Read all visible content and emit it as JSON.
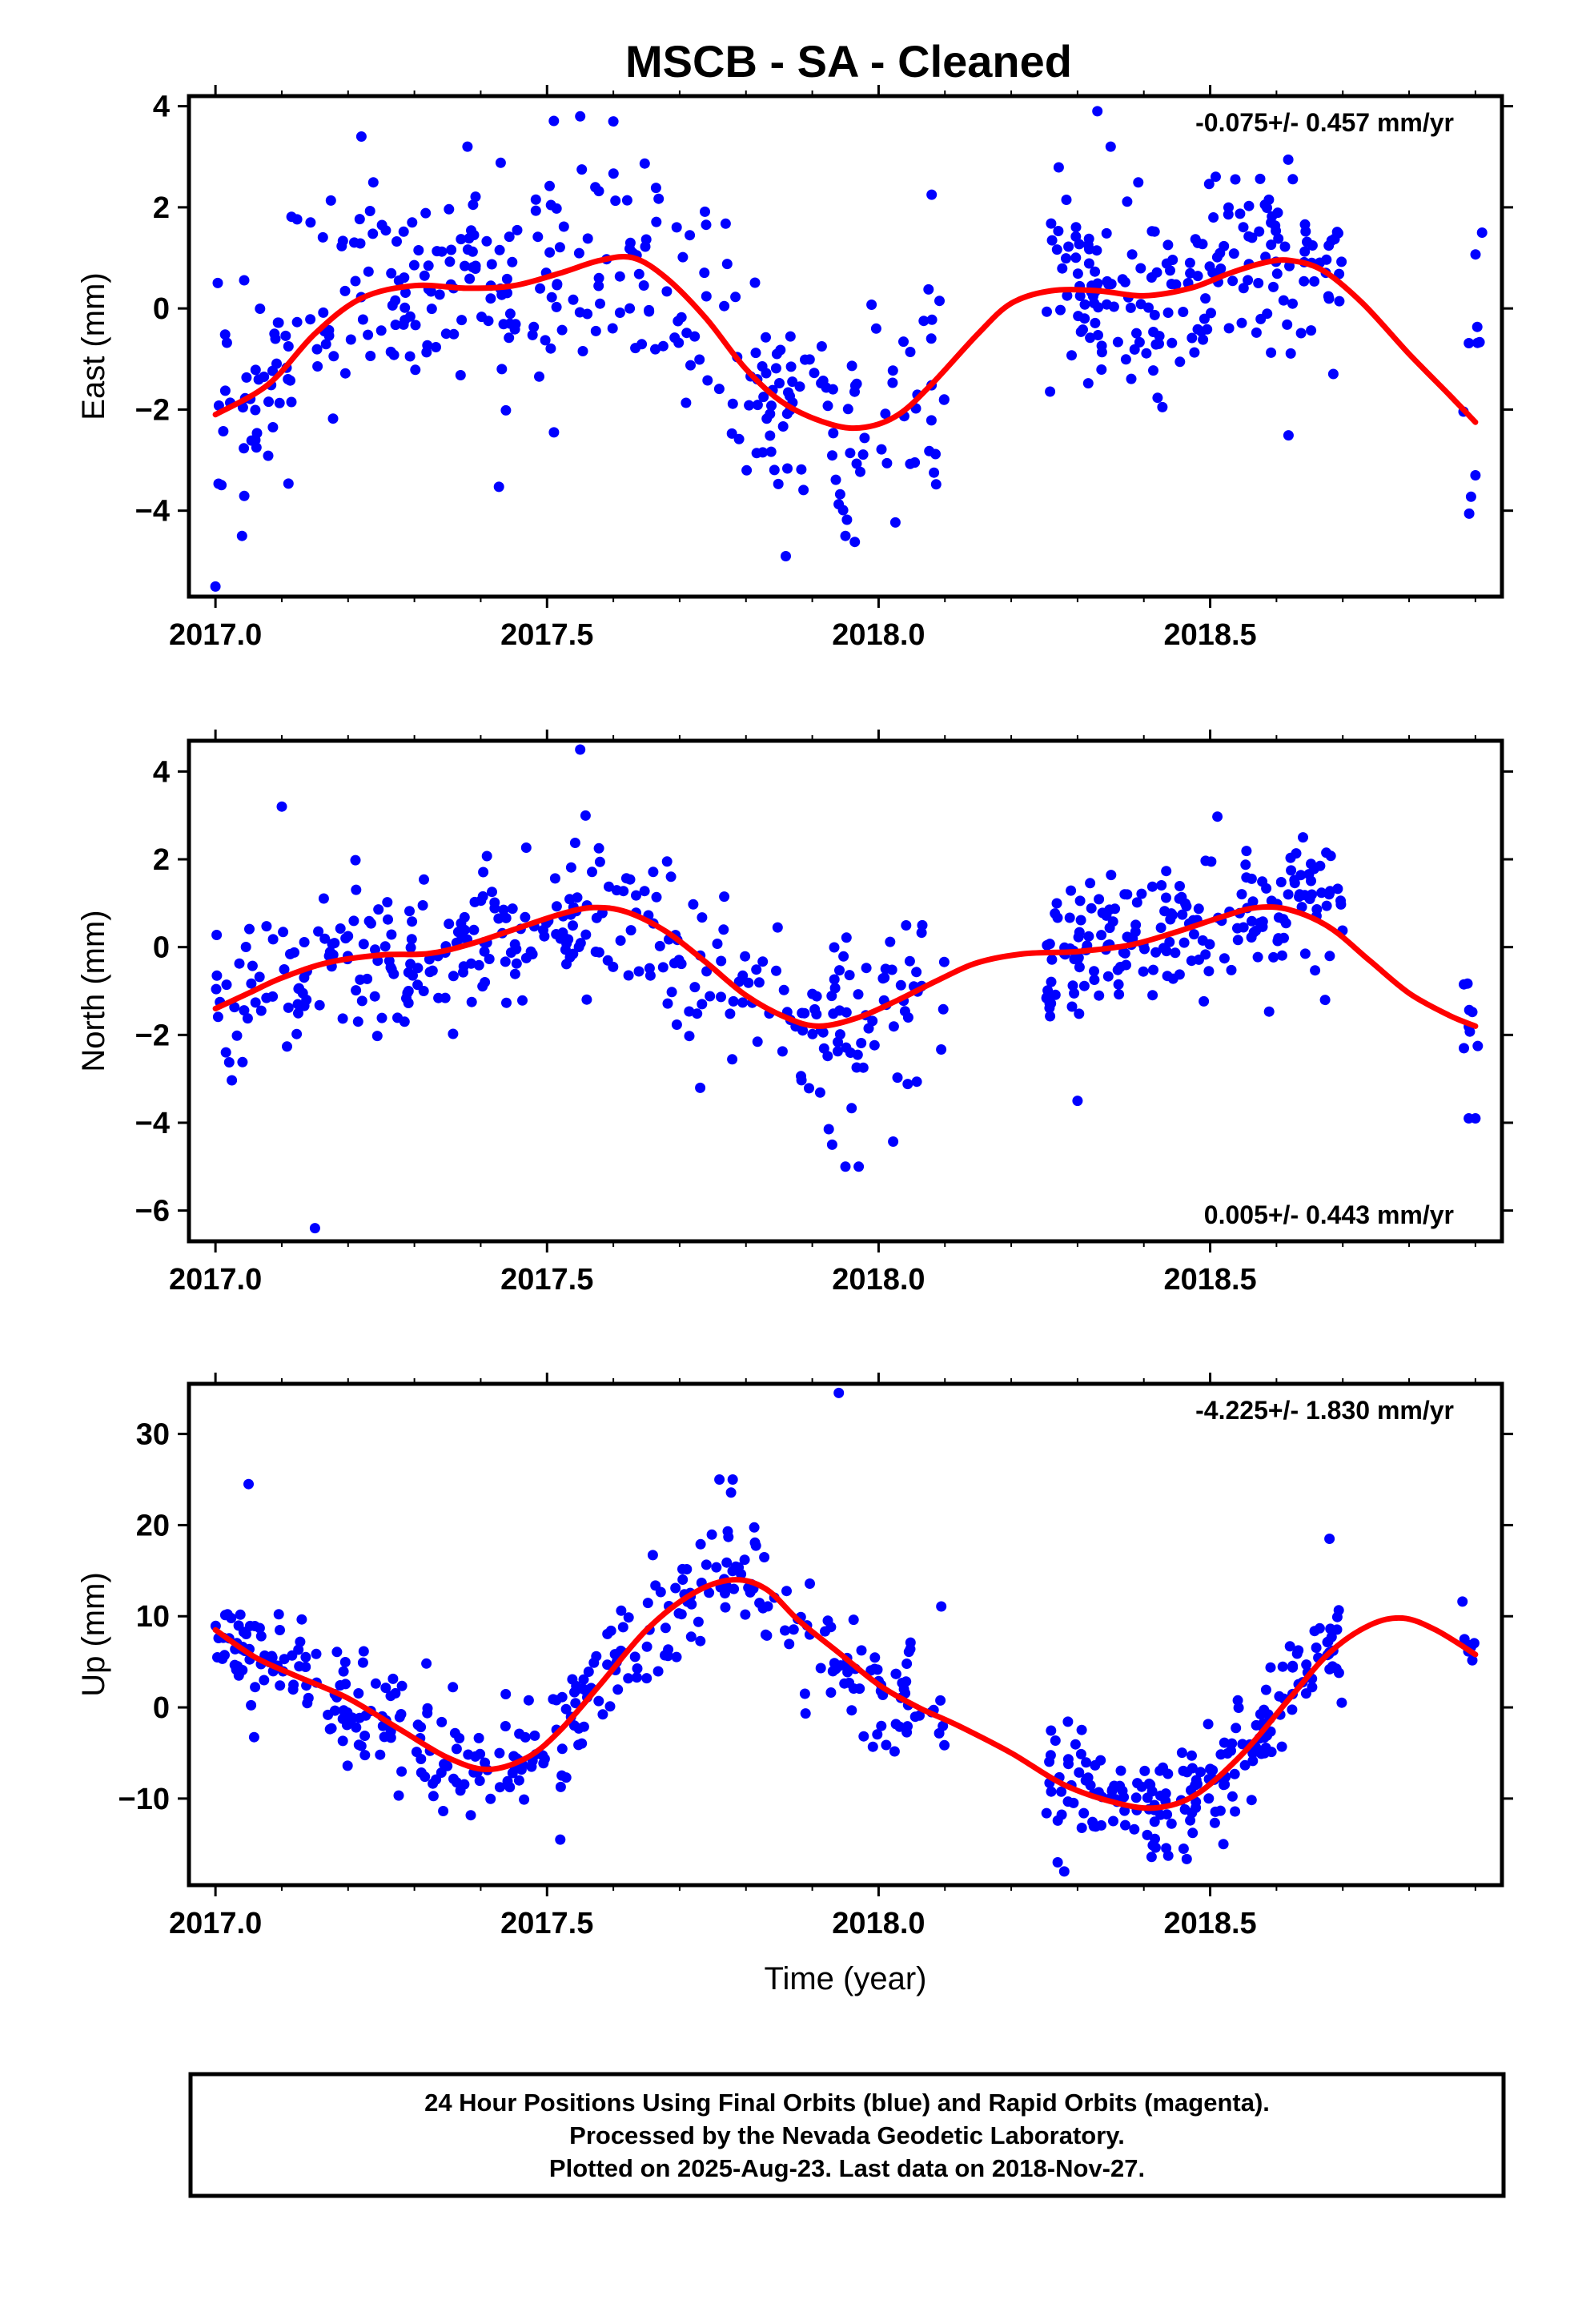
{
  "title": "MSCB  - SA - Cleaned",
  "footer": {
    "lines": [
      "24 Hour Positions Using Final Orbits (blue) and Rapid Orbits (magenta).",
      "Processed by the Nevada Geodetic Laboratory.",
      "Plotted on 2025-Aug-23. Last data on 2018-Nov-27."
    ]
  },
  "colors": {
    "points": "#0000ff",
    "fit": "#ff0000",
    "frame": "#000000"
  },
  "chart_data": [
    {
      "type": "scatter",
      "ylabel": "East (mm)",
      "xlabel": "",
      "rate_label": "-0.075+/- 0.457 mm/yr",
      "rate_position": "top-right",
      "xlim": [
        2016.96,
        2018.94
      ],
      "ylim": [
        -5.7,
        4.2
      ],
      "xticks": [
        2017.0,
        2017.5,
        2018.0,
        2018.5
      ],
      "xtick_labels": [
        "2017.0",
        "2017.5",
        "2018.0",
        "2018.5"
      ],
      "yticks": [
        -4,
        -2,
        0,
        2,
        4
      ],
      "ytick_labels": [
        "−4",
        "−2",
        "0",
        "2",
        "4"
      ],
      "trend_points": [
        [
          2017.0,
          -2.1
        ],
        [
          2017.08,
          -1.5
        ],
        [
          2017.15,
          -0.5
        ],
        [
          2017.22,
          0.2
        ],
        [
          2017.3,
          0.45
        ],
        [
          2017.38,
          0.4
        ],
        [
          2017.45,
          0.45
        ],
        [
          2017.52,
          0.7
        ],
        [
          2017.58,
          0.95
        ],
        [
          2017.63,
          1.0
        ],
        [
          2017.68,
          0.6
        ],
        [
          2017.74,
          -0.2
        ],
        [
          2017.8,
          -1.2
        ],
        [
          2017.86,
          -1.9
        ],
        [
          2017.93,
          -2.3
        ],
        [
          2017.98,
          -2.35
        ],
        [
          2018.03,
          -2.1
        ],
        [
          2018.08,
          -1.5
        ],
        [
          2018.15,
          -0.5
        ],
        [
          2018.2,
          0.1
        ],
        [
          2018.26,
          0.35
        ],
        [
          2018.33,
          0.35
        ],
        [
          2018.4,
          0.25
        ],
        [
          2018.47,
          0.4
        ],
        [
          2018.53,
          0.7
        ],
        [
          2018.58,
          0.9
        ],
        [
          2018.62,
          0.95
        ],
        [
          2018.67,
          0.75
        ],
        [
          2018.73,
          0.1
        ],
        [
          2018.8,
          -0.9
        ],
        [
          2018.86,
          -1.7
        ],
        [
          2018.9,
          -2.25
        ]
      ],
      "clusters": [
        {
          "x0": 2017.0,
          "x1": 2017.68,
          "n": 220,
          "sd": 1.05,
          "seed": 11
        },
        {
          "x0": 2017.68,
          "x1": 2018.1,
          "n": 120,
          "sd": 1.0,
          "seed": 12
        },
        {
          "x0": 2018.25,
          "x1": 2018.7,
          "n": 190,
          "sd": 0.95,
          "seed": 13
        },
        {
          "x0": 2018.88,
          "x1": 2018.91,
          "n": 8,
          "sd": 1.2,
          "seed": 14
        }
      ],
      "outliers": [
        [
          2017.0,
          -5.5
        ],
        [
          2017.04,
          -4.5
        ],
        [
          2017.22,
          3.4
        ],
        [
          2017.38,
          3.2
        ],
        [
          2017.55,
          3.8
        ],
        [
          2017.6,
          3.7
        ],
        [
          2017.86,
          -4.9
        ],
        [
          2017.95,
          -4.5
        ],
        [
          2018.08,
          2.25
        ],
        [
          2018.33,
          3.9
        ],
        [
          2018.35,
          3.2
        ],
        [
          2018.91,
          1.5
        ],
        [
          2018.9,
          -3.3
        ]
      ]
    },
    {
      "type": "scatter",
      "ylabel": "North (mm)",
      "xlabel": "",
      "rate_label": "0.005+/- 0.443 mm/yr",
      "rate_position": "bottom-right",
      "xlim": [
        2016.96,
        2018.94
      ],
      "ylim": [
        -6.7,
        4.7
      ],
      "xticks": [
        2017.0,
        2017.5,
        2018.0,
        2018.5
      ],
      "xtick_labels": [
        "2017.0",
        "2017.5",
        "2018.0",
        "2018.5"
      ],
      "yticks": [
        -6,
        -4,
        -2,
        0,
        2,
        4
      ],
      "ytick_labels": [
        "−6",
        "−4",
        "−2",
        "0",
        "2",
        "4"
      ],
      "trend_points": [
        [
          2017.0,
          -1.4
        ],
        [
          2017.05,
          -1.05
        ],
        [
          2017.1,
          -0.7
        ],
        [
          2017.17,
          -0.35
        ],
        [
          2017.25,
          -0.18
        ],
        [
          2017.32,
          -0.15
        ],
        [
          2017.38,
          0.05
        ],
        [
          2017.45,
          0.4
        ],
        [
          2017.52,
          0.75
        ],
        [
          2017.57,
          0.9
        ],
        [
          2017.62,
          0.8
        ],
        [
          2017.68,
          0.35
        ],
        [
          2017.74,
          -0.35
        ],
        [
          2017.8,
          -1.1
        ],
        [
          2017.86,
          -1.6
        ],
        [
          2017.91,
          -1.8
        ],
        [
          2017.97,
          -1.6
        ],
        [
          2018.03,
          -1.2
        ],
        [
          2018.09,
          -0.75
        ],
        [
          2018.15,
          -0.35
        ],
        [
          2018.22,
          -0.15
        ],
        [
          2018.3,
          -0.1
        ],
        [
          2018.38,
          0.05
        ],
        [
          2018.45,
          0.35
        ],
        [
          2018.52,
          0.7
        ],
        [
          2018.57,
          0.9
        ],
        [
          2018.62,
          0.85
        ],
        [
          2018.68,
          0.45
        ],
        [
          2018.74,
          -0.3
        ],
        [
          2018.8,
          -1.05
        ],
        [
          2018.86,
          -1.55
        ],
        [
          2018.9,
          -1.8
        ]
      ],
      "clusters": [
        {
          "x0": 2017.0,
          "x1": 2017.68,
          "n": 220,
          "sd": 0.85,
          "seed": 21
        },
        {
          "x0": 2017.68,
          "x1": 2018.1,
          "n": 120,
          "sd": 0.95,
          "seed": 22
        },
        {
          "x0": 2018.25,
          "x1": 2018.7,
          "n": 190,
          "sd": 0.8,
          "seed": 23
        },
        {
          "x0": 2018.88,
          "x1": 2018.91,
          "n": 8,
          "sd": 1.0,
          "seed": 24
        }
      ],
      "outliers": [
        [
          2017.15,
          -6.4
        ],
        [
          2017.1,
          3.2
        ],
        [
          2017.55,
          4.5
        ],
        [
          2017.93,
          -4.5
        ],
        [
          2017.95,
          -5.0
        ],
        [
          2017.97,
          -5.0
        ],
        [
          2018.3,
          -3.5
        ],
        [
          2018.9,
          -3.9
        ],
        [
          2018.89,
          -3.9
        ],
        [
          2018.64,
          2.5
        ]
      ]
    },
    {
      "type": "scatter",
      "ylabel": "Up (mm)",
      "xlabel": "Time (year)",
      "rate_label": "-4.225+/- 1.830 mm/yr",
      "rate_position": "top-right",
      "xlim": [
        2016.96,
        2018.94
      ],
      "ylim": [
        -19.5,
        35.5
      ],
      "xticks": [
        2017.0,
        2017.5,
        2018.0,
        2018.5
      ],
      "xtick_labels": [
        "2017.0",
        "2017.5",
        "2018.0",
        "2018.5"
      ],
      "yticks": [
        -10,
        0,
        10,
        20,
        30
      ],
      "ytick_labels": [
        "−10",
        "0",
        "10",
        "20",
        "30"
      ],
      "trend_points": [
        [
          2017.0,
          8.5
        ],
        [
          2017.06,
          5.5
        ],
        [
          2017.12,
          3.5
        ],
        [
          2017.2,
          1.0
        ],
        [
          2017.28,
          -2.5
        ],
        [
          2017.35,
          -5.5
        ],
        [
          2017.41,
          -6.8
        ],
        [
          2017.47,
          -5.5
        ],
        [
          2017.52,
          -2.5
        ],
        [
          2017.58,
          2.5
        ],
        [
          2017.65,
          8.5
        ],
        [
          2017.72,
          12.5
        ],
        [
          2017.78,
          14.0
        ],
        [
          2017.83,
          13.0
        ],
        [
          2017.88,
          9.5
        ],
        [
          2017.94,
          6.0
        ],
        [
          2018.0,
          2.5
        ],
        [
          2018.06,
          0.0
        ],
        [
          2018.12,
          -2.0
        ],
        [
          2018.2,
          -5.0
        ],
        [
          2018.28,
          -8.5
        ],
        [
          2018.36,
          -10.5
        ],
        [
          2018.42,
          -11.0
        ],
        [
          2018.48,
          -9.5
        ],
        [
          2018.55,
          -5.0
        ],
        [
          2018.62,
          1.0
        ],
        [
          2018.68,
          6.0
        ],
        [
          2018.74,
          9.0
        ],
        [
          2018.79,
          9.8
        ],
        [
          2018.84,
          8.5
        ],
        [
          2018.9,
          5.8
        ]
      ],
      "clusters": [
        {
          "x0": 2017.0,
          "x1": 2017.68,
          "n": 230,
          "sd": 3.1,
          "seed": 31
        },
        {
          "x0": 2017.68,
          "x1": 2018.1,
          "n": 125,
          "sd": 3.3,
          "seed": 32
        },
        {
          "x0": 2018.25,
          "x1": 2018.7,
          "n": 190,
          "sd": 2.9,
          "seed": 33
        },
        {
          "x0": 2018.88,
          "x1": 2018.91,
          "n": 8,
          "sd": 2.5,
          "seed": 34
        }
      ],
      "outliers": [
        [
          2017.05,
          24.5
        ],
        [
          2017.94,
          34.5
        ],
        [
          2018.28,
          -18.0
        ],
        [
          2018.27,
          -17.0
        ],
        [
          2017.76,
          25.0
        ],
        [
          2017.78,
          25.0
        ],
        [
          2018.68,
          18.5
        ],
        [
          2017.52,
          -14.5
        ],
        [
          2018.46,
          -15.5
        ],
        [
          2018.52,
          -15.0
        ]
      ]
    }
  ]
}
